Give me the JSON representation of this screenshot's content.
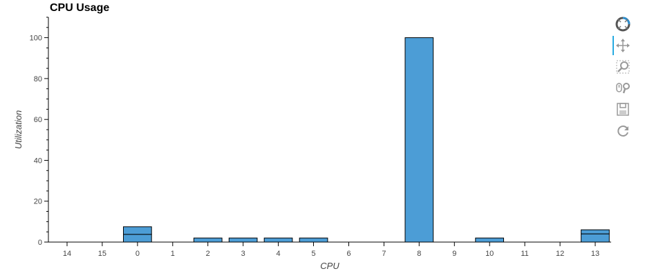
{
  "chart_data": {
    "type": "bar",
    "title": "CPU Usage",
    "xlabel": "CPU",
    "ylabel": "Utilization",
    "categories": [
      "14",
      "15",
      "0",
      "1",
      "2",
      "3",
      "4",
      "5",
      "6",
      "7",
      "8",
      "9",
      "10",
      "11",
      "12",
      "13"
    ],
    "stacked": true,
    "series": [
      {
        "values": [
          0,
          0,
          3.8,
          0,
          2,
          2,
          2,
          2,
          0,
          0,
          100,
          0,
          2,
          0,
          0,
          4
        ]
      },
      {
        "values": [
          0,
          0,
          3.7,
          0,
          0,
          0,
          0,
          0,
          0,
          0,
          0,
          0,
          0,
          0,
          0,
          2
        ]
      }
    ],
    "yticks": [
      0,
      20,
      40,
      60,
      80,
      100
    ],
    "ylim": [
      0,
      110
    ],
    "bar_color": "#4c9dd6",
    "grid": false
  },
  "toolbar": {
    "tools": [
      "bokeh-logo-icon",
      "pan-icon",
      "box-zoom-icon",
      "wheel-zoom-icon",
      "save-icon",
      "reset-icon"
    ]
  }
}
